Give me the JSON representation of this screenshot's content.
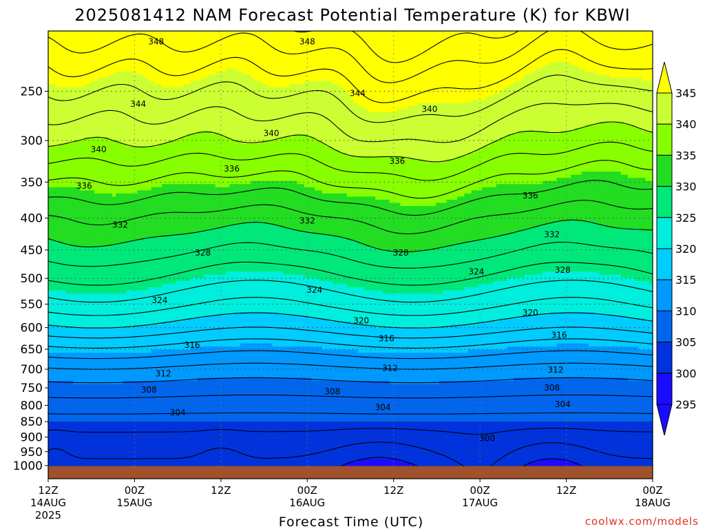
{
  "chart_data": {
    "type": "heatmap",
    "title": "2025081412 NAM Forecast Potential Temperature (K) for KBWI",
    "xlabel": "Forecast Time (UTC)",
    "ylabel": "",
    "x_ticks": [
      {
        "label": "12Z",
        "sub1": "14AUG",
        "sub2": "2025",
        "hour": 0
      },
      {
        "label": "00Z",
        "sub1": "15AUG",
        "sub2": "",
        "hour": 12
      },
      {
        "label": "12Z",
        "sub1": "",
        "sub2": "",
        "hour": 24
      },
      {
        "label": "00Z",
        "sub1": "16AUG",
        "sub2": "",
        "hour": 36
      },
      {
        "label": "12Z",
        "sub1": "",
        "sub2": "",
        "hour": 48
      },
      {
        "label": "00Z",
        "sub1": "17AUG",
        "sub2": "",
        "hour": 60
      },
      {
        "label": "12Z",
        "sub1": "",
        "sub2": "",
        "hour": 72
      },
      {
        "label": "00Z",
        "sub1": "18AUG",
        "sub2": "",
        "hour": 84
      }
    ],
    "x_range_hours": [
      0,
      84
    ],
    "y_scale": "log",
    "y_range_hPa": [
      1050,
      200
    ],
    "y_ticks": [
      250,
      300,
      350,
      400,
      450,
      500,
      550,
      600,
      650,
      700,
      750,
      800,
      850,
      900,
      950,
      1000
    ],
    "ground_level_hPa": 1015,
    "ground_color": "#a0522d",
    "colorbar": {
      "ticks": [
        345,
        340,
        335,
        330,
        325,
        320,
        315,
        310,
        305,
        300,
        295
      ],
      "bands": [
        {
          "min": 345,
          "color": "#ffff00"
        },
        {
          "min": 340,
          "color": "#ccff33"
        },
        {
          "min": 335,
          "color": "#88ff00"
        },
        {
          "min": 330,
          "color": "#22dd22"
        },
        {
          "min": 325,
          "color": "#00e87a"
        },
        {
          "min": 320,
          "color": "#00eedd"
        },
        {
          "min": 315,
          "color": "#00ccff"
        },
        {
          "min": 310,
          "color": "#0099ff"
        },
        {
          "min": 305,
          "color": "#0066ee"
        },
        {
          "min": 300,
          "color": "#0033dd"
        },
        {
          "min": 0,
          "color": "#1a0cff"
        }
      ]
    },
    "profile": {
      "pressure_hPa": [
        1000,
        950,
        900,
        850,
        800,
        750,
        700,
        650,
        600,
        550,
        500,
        450,
        400,
        350,
        300,
        250,
        200
      ],
      "theta_K": [
        301.5,
        302.5,
        303.5,
        305,
        307,
        309,
        311.5,
        315,
        319,
        322.5,
        325.5,
        328.5,
        331.5,
        335.5,
        340,
        344,
        349
      ]
    },
    "contour_levels": [
      298,
      300,
      302,
      304,
      306,
      308,
      310,
      312,
      314,
      316,
      318,
      320,
      322,
      324,
      326,
      328,
      330,
      332,
      334,
      336,
      338,
      340,
      342,
      344,
      346,
      348,
      350
    ],
    "contour_labels": [
      {
        "text": "348",
        "hour": 15,
        "hPa": 208
      },
      {
        "text": "348",
        "hour": 36,
        "hPa": 208
      },
      {
        "text": "344",
        "hour": 12.5,
        "hPa": 262
      },
      {
        "text": "344",
        "hour": 43,
        "hPa": 252
      },
      {
        "text": "340",
        "hour": 53,
        "hPa": 267
      },
      {
        "text": "340",
        "hour": 31,
        "hPa": 292
      },
      {
        "text": "340",
        "hour": 7,
        "hPa": 310
      },
      {
        "text": "336",
        "hour": 25.5,
        "hPa": 333
      },
      {
        "text": "336",
        "hour": 48.5,
        "hPa": 324
      },
      {
        "text": "336",
        "hour": 5,
        "hPa": 355
      },
      {
        "text": "336",
        "hour": 67,
        "hPa": 368
      },
      {
        "text": "332",
        "hour": 10,
        "hPa": 410
      },
      {
        "text": "332",
        "hour": 36,
        "hPa": 404
      },
      {
        "text": "332",
        "hour": 70,
        "hPa": 425
      },
      {
        "text": "328",
        "hour": 21.5,
        "hPa": 455
      },
      {
        "text": "328",
        "hour": 49,
        "hPa": 455
      },
      {
        "text": "328",
        "hour": 71.5,
        "hPa": 485
      },
      {
        "text": "324",
        "hour": 59.5,
        "hPa": 488
      },
      {
        "text": "324",
        "hour": 37,
        "hPa": 522
      },
      {
        "text": "324",
        "hour": 15.5,
        "hPa": 542
      },
      {
        "text": "320",
        "hour": 43.5,
        "hPa": 585
      },
      {
        "text": "320",
        "hour": 67,
        "hPa": 568
      },
      {
        "text": "316",
        "hour": 20,
        "hPa": 640
      },
      {
        "text": "316",
        "hour": 47,
        "hPa": 625
      },
      {
        "text": "316",
        "hour": 71,
        "hPa": 617
      },
      {
        "text": "312",
        "hour": 16,
        "hPa": 712
      },
      {
        "text": "312",
        "hour": 47.5,
        "hPa": 697
      },
      {
        "text": "312",
        "hour": 70.5,
        "hPa": 702
      },
      {
        "text": "308",
        "hour": 14,
        "hPa": 756
      },
      {
        "text": "308",
        "hour": 39.5,
        "hPa": 760
      },
      {
        "text": "308",
        "hour": 70,
        "hPa": 750
      },
      {
        "text": "304",
        "hour": 18,
        "hPa": 822
      },
      {
        "text": "304",
        "hour": 46.5,
        "hPa": 806
      },
      {
        "text": "304",
        "hour": 71.5,
        "hPa": 797
      },
      {
        "text": "300",
        "hour": 61,
        "hPa": 905
      }
    ]
  },
  "credit": "coolwx.com/models"
}
